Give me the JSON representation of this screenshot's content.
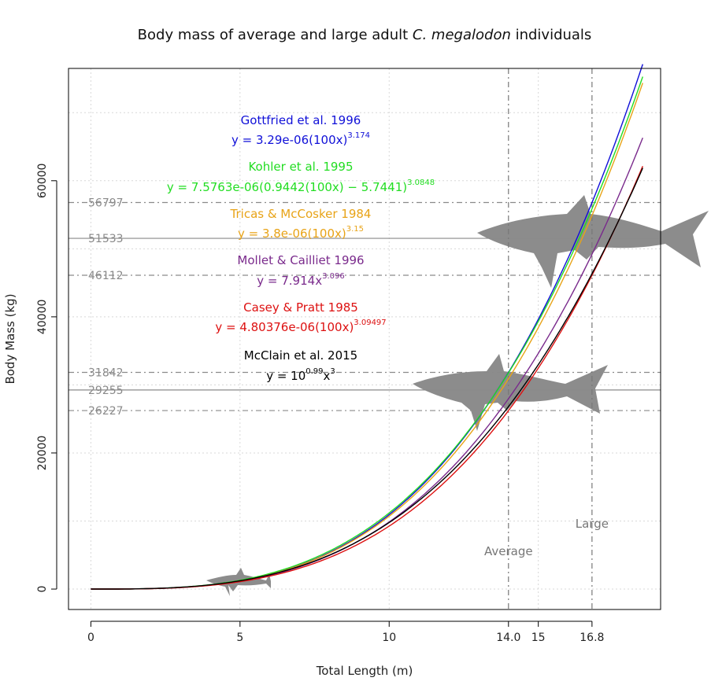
{
  "chart_data": {
    "type": "line",
    "title": {
      "prefix": "Body mass of average and large adult ",
      "species": "C. megalodon",
      "suffix": " individuals"
    },
    "xlabel": "Total Length (m)",
    "ylabel": "Body Mass (kg)",
    "xlim": [
      -0.75,
      19.1
    ],
    "ylim": [
      -3000,
      76500
    ],
    "x_ticks": [
      {
        "value": 0,
        "label": "0"
      },
      {
        "value": 5,
        "label": "5"
      },
      {
        "value": 10,
        "label": "10"
      },
      {
        "value": 14.0,
        "label": "14.0"
      },
      {
        "value": 15,
        "label": "15"
      },
      {
        "value": 16.8,
        "label": "16.8"
      }
    ],
    "y_ticks": [
      {
        "value": 0,
        "label": "0"
      },
      {
        "value": 20000,
        "label": "20000"
      },
      {
        "value": 40000,
        "label": "40000"
      },
      {
        "value": 60000,
        "label": "60000"
      }
    ],
    "grid": true,
    "vertical_refs": [
      {
        "x": 14.0,
        "label": "Average",
        "label_y": 5000
      },
      {
        "x": 16.8,
        "label": "Large",
        "label_y": 9000
      }
    ],
    "horizontal_refs": [
      {
        "y": 56797,
        "label": "56797",
        "style": "dashed"
      },
      {
        "y": 51533,
        "label": "51533",
        "style": "solid"
      },
      {
        "y": 46112,
        "label": "46112",
        "style": "dashed"
      },
      {
        "y": 31842,
        "label": "31842",
        "style": "dashed"
      },
      {
        "y": 29255,
        "label": "29255",
        "style": "solid"
      },
      {
        "y": 26227,
        "label": "26227",
        "style": "dashed"
      }
    ],
    "series": [
      {
        "name": "Gottfried et al. 1996",
        "color": "#1010d8",
        "formula": "gottfried",
        "equation": "y = 3.29e-06(100x)",
        "exponent": "3.174",
        "x_range": [
          0,
          18.5
        ]
      },
      {
        "name": "Kohler et al. 1995",
        "color": "#22dd22",
        "formula": "kohler",
        "equation": "y = 7.5763e-06(0.9442(100x) − 5.7441)",
        "exponent": "3.0848",
        "x_range": [
          0.07,
          18.5
        ]
      },
      {
        "name": "Tricas & McCosker 1984",
        "color": "#e8a317",
        "formula": "tricas",
        "equation": "y = 3.8e-06(100x)",
        "exponent": "3.15",
        "x_range": [
          0,
          18.5
        ]
      },
      {
        "name": "Mollet & Cailliet 1996",
        "color": "#7a2a8c",
        "formula": "mollet",
        "equation": "y = 7.914x",
        "exponent": "3.096",
        "x_range": [
          0,
          18.5
        ]
      },
      {
        "name": "Casey & Pratt 1985",
        "color": "#dd1111",
        "formula": "casey",
        "equation": "y = 4.80376e-06(100x)",
        "exponent": "3.09497",
        "x_range": [
          0,
          18.5
        ]
      },
      {
        "name": "McClain et al. 2015",
        "color": "#000000",
        "formula": "mcclain",
        "equation_base": "y = 10",
        "equation_base_exp": "0.99",
        "equation_tail": "x",
        "exponent": "3",
        "x_range": [
          0,
          18.5
        ]
      }
    ],
    "silhouettes": [
      {
        "name": "large-shark-silhouette",
        "color": "#8c8c8c"
      },
      {
        "name": "average-shark-silhouette",
        "color": "#8c8c8c"
      },
      {
        "name": "small-shark-silhouette",
        "color": "#8c8c8c"
      }
    ]
  }
}
